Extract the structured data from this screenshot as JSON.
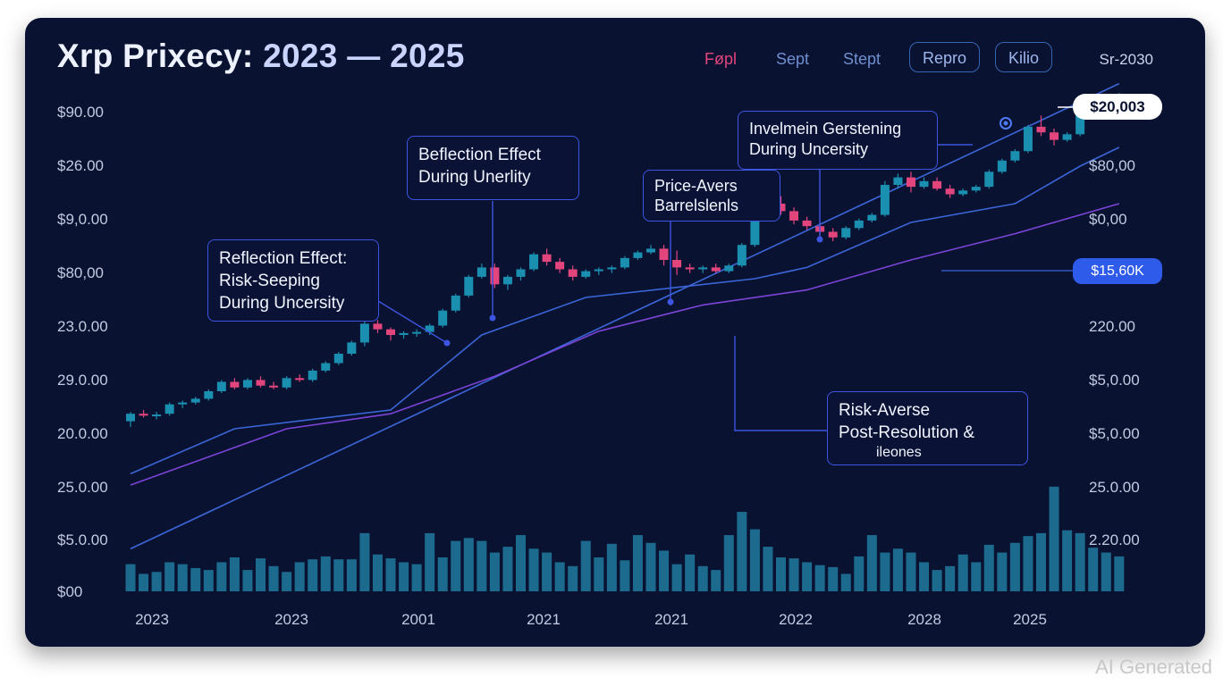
{
  "title": {
    "main": "Xrp Prixecy: ",
    "years": "2023 — 2025"
  },
  "tabs": [
    {
      "label": "Føpl",
      "active": true
    },
    {
      "label": "Sept",
      "active": false
    },
    {
      "label": "Stept",
      "active": false
    }
  ],
  "pills": [
    "Repro",
    "Kilio"
  ],
  "date_label": "Sr-2030",
  "price_badge": "$20,003",
  "level_badge": "$15,60K",
  "annotations": [
    {
      "id": "reflection-risk",
      "lines": [
        "Reflection Effect:",
        "Risk-Seeping",
        "During Uncersity"
      ]
    },
    {
      "id": "reflection-uncertainty",
      "lines": [
        "Beflection Effect",
        "During Unerlity"
      ]
    },
    {
      "id": "price-averse",
      "lines": [
        "Price-Avers",
        "Barrelslenls"
      ]
    },
    {
      "id": "investment-gerstening",
      "lines": [
        "Invelmein Gerstening",
        "During Uncersity"
      ]
    },
    {
      "id": "risk-averse",
      "lines": [
        "Risk-Averse",
        "Post-Resolution &"
      ],
      "sub": "ilеones"
    }
  ],
  "watermark": "AI Generated",
  "colors": {
    "background": "#0a1232",
    "candle_up": "#1b8fb0",
    "candle_down": "#e2457c",
    "volume": "#1c6b8e",
    "trend_blue": "#3b66d8",
    "trend_purple": "#7b44d6",
    "annotation_border": "#3d55e0"
  },
  "chart_data": {
    "type": "candlestick",
    "title": "Xrp Prixecy: 2023 — 2025",
    "y_left_ticks": [
      "$90.00",
      "$26.00",
      "$9,0.00",
      "$80,00",
      "23.0.00",
      "29.0.00",
      "20.0.00",
      "25.0.00",
      "$5.0.00",
      "$00"
    ],
    "y_right_ticks": [
      "$80,00",
      "$0,00",
      "220.00",
      "$5,0.00",
      "$5,0.00",
      "25.0.00",
      "2.20.00"
    ],
    "x_ticks": [
      "2023",
      "2023",
      "2001",
      "2021",
      "2021",
      "2022",
      "2028",
      "2025"
    ],
    "ylim": [
      0,
      100
    ],
    "candles": [
      {
        "o": 22,
        "h": 24.5,
        "l": 20.5,
        "c": 24
      },
      {
        "o": 24,
        "h": 25,
        "l": 23,
        "c": 23.5
      },
      {
        "o": 23.5,
        "h": 24.5,
        "l": 22.5,
        "c": 23.8
      },
      {
        "o": 24,
        "h": 27,
        "l": 23.5,
        "c": 26.5
      },
      {
        "o": 26.5,
        "h": 27.5,
        "l": 25.5,
        "c": 27
      },
      {
        "o": 27,
        "h": 28.5,
        "l": 26.5,
        "c": 28
      },
      {
        "o": 28,
        "h": 30.5,
        "l": 27.5,
        "c": 30
      },
      {
        "o": 30,
        "h": 33,
        "l": 29.5,
        "c": 32.5
      },
      {
        "o": 32.5,
        "h": 33.5,
        "l": 30.5,
        "c": 31
      },
      {
        "o": 31,
        "h": 33.5,
        "l": 30.5,
        "c": 33
      },
      {
        "o": 33,
        "h": 34,
        "l": 31,
        "c": 31.5
      },
      {
        "o": 31.5,
        "h": 32.5,
        "l": 30.5,
        "c": 31
      },
      {
        "o": 31,
        "h": 34,
        "l": 30.5,
        "c": 33.5
      },
      {
        "o": 33.5,
        "h": 34.5,
        "l": 32.5,
        "c": 33
      },
      {
        "o": 33,
        "h": 36,
        "l": 32.5,
        "c": 35.5
      },
      {
        "o": 35.5,
        "h": 38,
        "l": 35,
        "c": 37.5
      },
      {
        "o": 37.5,
        "h": 40.5,
        "l": 37,
        "c": 40
      },
      {
        "o": 40,
        "h": 43.5,
        "l": 39.5,
        "c": 43
      },
      {
        "o": 43,
        "h": 49,
        "l": 42,
        "c": 48
      },
      {
        "o": 48,
        "h": 49,
        "l": 45.5,
        "c": 46.5
      },
      {
        "o": 46.5,
        "h": 47,
        "l": 43.5,
        "c": 45
      },
      {
        "o": 45,
        "h": 46,
        "l": 44,
        "c": 45.5
      },
      {
        "o": 45.5,
        "h": 46.5,
        "l": 44.5,
        "c": 45.8
      },
      {
        "o": 45.8,
        "h": 48,
        "l": 45,
        "c": 47.5
      },
      {
        "o": 47.5,
        "h": 52,
        "l": 47,
        "c": 51.5
      },
      {
        "o": 51.5,
        "h": 56,
        "l": 51,
        "c": 55.5
      },
      {
        "o": 55.5,
        "h": 61,
        "l": 55,
        "c": 60.5
      },
      {
        "o": 60.5,
        "h": 64,
        "l": 60,
        "c": 63
      },
      {
        "o": 63,
        "h": 64,
        "l": 57.5,
        "c": 58.5
      },
      {
        "o": 58.5,
        "h": 61,
        "l": 57,
        "c": 60.5
      },
      {
        "o": 60.5,
        "h": 63,
        "l": 59.5,
        "c": 62.5
      },
      {
        "o": 62.5,
        "h": 67,
        "l": 62,
        "c": 66.5
      },
      {
        "o": 66.5,
        "h": 68,
        "l": 63.5,
        "c": 64.5
      },
      {
        "o": 64.5,
        "h": 65.5,
        "l": 61.5,
        "c": 62.5
      },
      {
        "o": 62.5,
        "h": 63.5,
        "l": 59.5,
        "c": 60.5
      },
      {
        "o": 60.5,
        "h": 62.5,
        "l": 60,
        "c": 62
      },
      {
        "o": 62,
        "h": 63,
        "l": 61,
        "c": 62.5
      },
      {
        "o": 62.5,
        "h": 63.5,
        "l": 61.5,
        "c": 63
      },
      {
        "o": 63,
        "h": 66,
        "l": 62.5,
        "c": 65.5
      },
      {
        "o": 65.5,
        "h": 67.5,
        "l": 65,
        "c": 67
      },
      {
        "o": 67,
        "h": 69,
        "l": 66.5,
        "c": 68
      },
      {
        "o": 68,
        "h": 69,
        "l": 63.5,
        "c": 65
      },
      {
        "o": 65,
        "h": 67.5,
        "l": 61,
        "c": 63
      },
      {
        "o": 63,
        "h": 64,
        "l": 61.5,
        "c": 62.5
      },
      {
        "o": 62.5,
        "h": 63.5,
        "l": 61.5,
        "c": 63
      },
      {
        "o": 63,
        "h": 64,
        "l": 61.5,
        "c": 62
      },
      {
        "o": 62,
        "h": 64,
        "l": 61.5,
        "c": 63.5
      },
      {
        "o": 63.5,
        "h": 69.5,
        "l": 63,
        "c": 69
      },
      {
        "o": 69,
        "h": 78,
        "l": 68.5,
        "c": 77
      },
      {
        "o": 77,
        "h": 81,
        "l": 76,
        "c": 80
      },
      {
        "o": 80,
        "h": 82,
        "l": 77,
        "c": 78
      },
      {
        "o": 78,
        "h": 79,
        "l": 74.5,
        "c": 75.5
      },
      {
        "o": 75.5,
        "h": 76.5,
        "l": 73,
        "c": 74
      },
      {
        "o": 74,
        "h": 75,
        "l": 71.5,
        "c": 72.5
      },
      {
        "o": 72.5,
        "h": 73.5,
        "l": 70,
        "c": 71
      },
      {
        "o": 71,
        "h": 74,
        "l": 70.5,
        "c": 73.5
      },
      {
        "o": 73.5,
        "h": 76,
        "l": 73,
        "c": 75.5
      },
      {
        "o": 75.5,
        "h": 77.5,
        "l": 75,
        "c": 77
      },
      {
        "o": 77,
        "h": 86,
        "l": 76.5,
        "c": 85
      },
      {
        "o": 85,
        "h": 88,
        "l": 84,
        "c": 87
      },
      {
        "o": 87,
        "h": 88.5,
        "l": 83,
        "c": 84.5
      },
      {
        "o": 84.5,
        "h": 87,
        "l": 84,
        "c": 86
      },
      {
        "o": 86,
        "h": 87,
        "l": 83.5,
        "c": 84
      },
      {
        "o": 84,
        "h": 85,
        "l": 81.5,
        "c": 82.5
      },
      {
        "o": 82.5,
        "h": 84,
        "l": 82,
        "c": 83.5
      },
      {
        "o": 83.5,
        "h": 85,
        "l": 83,
        "c": 84.5
      },
      {
        "o": 84.5,
        "h": 89,
        "l": 84,
        "c": 88.5
      },
      {
        "o": 88.5,
        "h": 92,
        "l": 88,
        "c": 91.5
      },
      {
        "o": 91.5,
        "h": 94.5,
        "l": 91,
        "c": 94
      },
      {
        "o": 94,
        "h": 101,
        "l": 93.5,
        "c": 100.5
      },
      {
        "o": 100.5,
        "h": 103.5,
        "l": 98,
        "c": 99
      },
      {
        "o": 99,
        "h": 100,
        "l": 95.5,
        "c": 97
      },
      {
        "o": 97,
        "h": 99,
        "l": 96.5,
        "c": 98.5
      },
      {
        "o": 98.5,
        "h": 106,
        "l": 98,
        "c": 105.5
      },
      {
        "o": 105.5,
        "h": 109,
        "l": 104,
        "c": 108
      },
      {
        "o": 108,
        "h": 109,
        "l": 103,
        "c": 104
      },
      {
        "o": 104,
        "h": 109.5,
        "l": 103.5,
        "c": 108.5
      }
    ],
    "volume": [
      28,
      18,
      20,
      30,
      28,
      24,
      22,
      30,
      35,
      22,
      34,
      26,
      20,
      30,
      33,
      36,
      33,
      33,
      60,
      38,
      34,
      30,
      28,
      60,
      35,
      52,
      55,
      52,
      40,
      46,
      58,
      44,
      40,
      30,
      26,
      52,
      35,
      49,
      32,
      58,
      50,
      42,
      28,
      38,
      26,
      22,
      58,
      82,
      64,
      46,
      35,
      34,
      30,
      27,
      25,
      18,
      36,
      58,
      40,
      44,
      40,
      30,
      22,
      26,
      38,
      30,
      48,
      40,
      50,
      57,
      60,
      108,
      63,
      60,
      45,
      40,
      36
    ],
    "trend_lines": [
      {
        "name": "upper-channel",
        "color": "blue",
        "x": [
          0,
          76
        ],
        "y": [
          -12,
          112
        ]
      },
      {
        "name": "moving-average",
        "color": "blue",
        "points": [
          [
            0,
            8
          ],
          [
            8,
            20
          ],
          [
            20,
            25
          ],
          [
            27,
            45
          ],
          [
            35,
            55
          ],
          [
            48,
            60
          ],
          [
            52,
            63
          ],
          [
            60,
            75
          ],
          [
            68,
            80
          ],
          [
            73,
            90
          ],
          [
            76,
            95
          ]
        ]
      },
      {
        "name": "long-trend",
        "color": "purple",
        "points": [
          [
            0,
            5
          ],
          [
            12,
            20
          ],
          [
            20,
            24
          ],
          [
            28,
            34
          ],
          [
            36,
            46
          ],
          [
            44,
            53
          ],
          [
            52,
            57
          ],
          [
            60,
            65
          ],
          [
            68,
            72
          ],
          [
            76,
            80
          ]
        ]
      }
    ]
  }
}
